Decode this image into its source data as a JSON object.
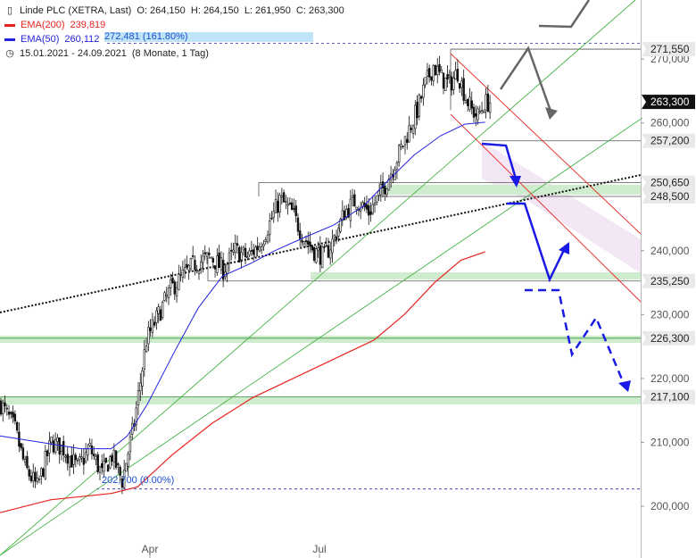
{
  "legend": {
    "title": "Linde PLC (XETRA, Last)",
    "ohlc": "O: 264,150  H: 264,150  L: 261,950  C: 263,300",
    "ema200_label": "EMA(200)",
    "ema200_value": "239,819",
    "ema50_label": "EMA(50)",
    "ema50_value": "260,112",
    "period": "15.01.2021 - 24.09.2021",
    "period_detail": "(8 Monate, 1 Tag)"
  },
  "fib": {
    "high_label": "272,481 (161.80%)",
    "low_label": "202,700 (0.00%)"
  },
  "colors": {
    "ema200": "#e8231f",
    "ema50": "#2323e0",
    "price": "#000000",
    "projection": "#1a1ae6",
    "scenario": "#666666",
    "trend_green": "#46b446",
    "channel_red": "#e8231f",
    "zone_green": "#cfeccf",
    "channel_fill": "#f3e6f5"
  },
  "chart_data": {
    "type": "candlestick",
    "title": "Linde PLC (XETRA, Last)",
    "period": "15.01.2021 - 24.09.2021",
    "x_ticks": [
      "Apr",
      "Jul"
    ],
    "y_ticks": [
      "200,000",
      "210,000",
      "220,000",
      "230,000",
      "240,000",
      "250,000",
      "260,000",
      "270,000"
    ],
    "ylim": [
      195,
      280
    ],
    "last": {
      "open": 264.15,
      "high": 264.15,
      "low": 261.95,
      "close": 263.3
    },
    "price_path": [
      [
        0,
        216
      ],
      [
        7,
        212
      ],
      [
        12,
        206
      ],
      [
        18,
        203
      ],
      [
        25,
        210
      ],
      [
        31,
        209
      ],
      [
        38,
        206
      ],
      [
        44,
        209
      ],
      [
        50,
        205
      ],
      [
        55,
        208
      ],
      [
        60,
        204
      ],
      [
        66,
        213
      ],
      [
        72,
        226
      ],
      [
        78,
        230
      ],
      [
        84,
        234
      ],
      [
        90,
        236
      ],
      [
        96,
        238
      ],
      [
        104,
        239
      ],
      [
        110,
        237
      ],
      [
        116,
        240
      ],
      [
        122,
        239
      ],
      [
        128,
        241
      ],
      [
        134,
        245
      ],
      [
        138,
        248
      ],
      [
        144,
        246
      ],
      [
        150,
        242
      ],
      [
        155,
        240
      ],
      [
        160,
        239
      ],
      [
        165,
        242
      ],
      [
        170,
        246
      ],
      [
        176,
        248
      ],
      [
        182,
        246
      ],
      [
        188,
        249
      ],
      [
        194,
        253
      ],
      [
        198,
        256
      ],
      [
        202,
        259
      ],
      [
        206,
        262
      ],
      [
        210,
        266
      ],
      [
        214,
        269
      ],
      [
        218,
        267
      ],
      [
        222,
        266
      ],
      [
        226,
        268
      ],
      [
        230,
        264
      ],
      [
        233,
        262
      ],
      [
        236,
        261
      ],
      [
        239,
        263
      ],
      [
        242,
        263.3
      ]
    ],
    "ema50_path": [
      [
        0,
        211
      ],
      [
        20,
        210
      ],
      [
        40,
        209
      ],
      [
        55,
        209
      ],
      [
        63,
        211
      ],
      [
        73,
        216
      ],
      [
        86,
        224
      ],
      [
        98,
        231
      ],
      [
        110,
        236
      ],
      [
        124,
        238
      ],
      [
        136,
        240
      ],
      [
        150,
        242
      ],
      [
        165,
        244
      ],
      [
        180,
        247
      ],
      [
        192,
        251
      ],
      [
        205,
        255
      ],
      [
        218,
        258
      ],
      [
        230,
        259.8
      ],
      [
        240,
        260.112
      ]
    ],
    "ema200_path": [
      [
        0,
        199
      ],
      [
        25,
        201
      ],
      [
        55,
        202
      ],
      [
        68,
        203
      ],
      [
        85,
        208
      ],
      [
        105,
        213
      ],
      [
        125,
        217
      ],
      [
        145,
        220
      ],
      [
        165,
        223
      ],
      [
        185,
        226
      ],
      [
        200,
        230
      ],
      [
        215,
        235
      ],
      [
        228,
        238.5
      ],
      [
        240,
        239.819
      ]
    ],
    "horizontal_levels": [
      {
        "label": "271,550",
        "value": 271.55
      },
      {
        "label": "257,200",
        "value": 257.2
      },
      {
        "label": "250,650",
        "value": 250.65
      },
      {
        "label": "248,500",
        "value": 248.5
      },
      {
        "label": "235,250",
        "value": 235.25
      },
      {
        "label": "226,300",
        "value": 226.3
      },
      {
        "label": "217,100",
        "value": 217.1
      }
    ],
    "current_price_label": "263,300",
    "current_price": 263.3,
    "fibonacci": [
      {
        "label": "272,481 (161.80%)",
        "value": 272.481
      },
      {
        "label": "202,700 (0.00%)",
        "value": 202.7
      }
    ]
  }
}
